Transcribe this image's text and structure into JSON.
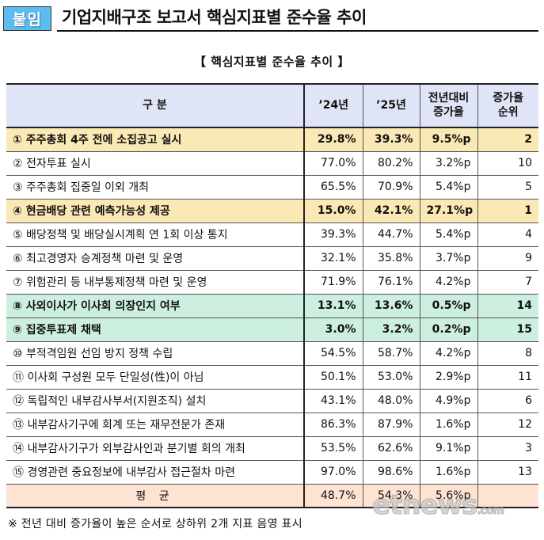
{
  "header": {
    "badge": "붙임",
    "title": "기업지배구조 보고서 핵심지표별 준수율 추이"
  },
  "caption": "【 핵심지표별 준수율 추이 】",
  "table": {
    "columns": [
      "구 분",
      "’24년",
      "’25년",
      "전년대비\n증가율",
      "증가율\n순위"
    ],
    "columns_display": {
      "c0": "구 분",
      "c1": "’24년",
      "c2": "’25년",
      "c3a": "전년대비",
      "c3b": "증가율",
      "c4a": "증가율",
      "c4b": "순위"
    },
    "rows": [
      {
        "label": "① 주주총회 4주 전에 소집공고 실시",
        "y2024": "29.8%",
        "y2025": "39.3%",
        "increase": "9.5%p",
        "rank": "2",
        "highlight": "top"
      },
      {
        "label": "② 전자투표 실시",
        "y2024": "77.0%",
        "y2025": "80.2%",
        "increase": "3.2%p",
        "rank": "10"
      },
      {
        "label": "③ 주주총회 집중일 이외 개최",
        "y2024": "65.5%",
        "y2025": "70.9%",
        "increase": "5.4%p",
        "rank": "5"
      },
      {
        "label": "④ 현금배당 관련 예측가능성 제공",
        "y2024": "15.0%",
        "y2025": "42.1%",
        "increase": "27.1%p",
        "rank": "1",
        "highlight": "top"
      },
      {
        "label": "⑤ 배당정책 및 배당실시계획 연 1회 이상 통지",
        "y2024": "39.3%",
        "y2025": "44.7%",
        "increase": "5.4%p",
        "rank": "4"
      },
      {
        "label": "⑥ 최고경영자 승계정책 마련 및 운영",
        "y2024": "32.1%",
        "y2025": "35.8%",
        "increase": "3.7%p",
        "rank": "9"
      },
      {
        "label": "⑦ 위험관리 등 내부통제정책 마련 및 운영",
        "y2024": "71.9%",
        "y2025": "76.1%",
        "increase": "4.2%p",
        "rank": "7"
      },
      {
        "label": "⑧ 사외이사가 이사회 의장인지 여부",
        "y2024": "13.1%",
        "y2025": "13.6%",
        "increase": "0.5%p",
        "rank": "14",
        "highlight": "bottom"
      },
      {
        "label": "⑨ 집중투표제 채택",
        "y2024": "3.0%",
        "y2025": "3.2%",
        "increase": "0.2%p",
        "rank": "15",
        "highlight": "bottom"
      },
      {
        "label": "⑩ 부적격임원 선임 방지 정책 수립",
        "y2024": "54.5%",
        "y2025": "58.7%",
        "increase": "4.2%p",
        "rank": "8"
      },
      {
        "label": "⑪ 이사회 구성원 모두 단일성(性)이 아님",
        "y2024": "50.1%",
        "y2025": "53.0%",
        "increase": "2.9%p",
        "rank": "11"
      },
      {
        "label": "⑫ 독립적인 내부감사부서(지원조직) 설치",
        "y2024": "43.1%",
        "y2025": "48.0%",
        "increase": "4.9%p",
        "rank": "6"
      },
      {
        "label": "⑬ 내부감사기구에 회계 또는 재무전문가 존재",
        "y2024": "86.3%",
        "y2025": "87.9%",
        "increase": "1.6%p",
        "rank": "12"
      },
      {
        "label": "⑭ 내부감사기구가 외부감사인과 분기별 회의 개최",
        "y2024": "53.5%",
        "y2025": "62.6%",
        "increase": "9.1%p",
        "rank": "3"
      },
      {
        "label": "⑮ 경영관련 중요정보에 내부감사 접근절차 마련",
        "y2024": "97.0%",
        "y2025": "98.6%",
        "increase": "1.6%p",
        "rank": "13"
      }
    ],
    "average": {
      "label": "평 균",
      "y2024": "48.7%",
      "y2025": "54.3%",
      "increase": "5.6%p",
      "rank": ""
    }
  },
  "footnote": "※ 전년 대비 증가율이 높은 순서로 상하위 2개 지표 음영 표시",
  "watermark": {
    "main": "etnews",
    "domain": ".com"
  },
  "colors": {
    "badge": "#5bbcf0",
    "header_bg": "#dfe5f6",
    "highlight_top": "#fae8b5",
    "highlight_bottom": "#cdefdf",
    "average_bg": "#fde3d2"
  }
}
